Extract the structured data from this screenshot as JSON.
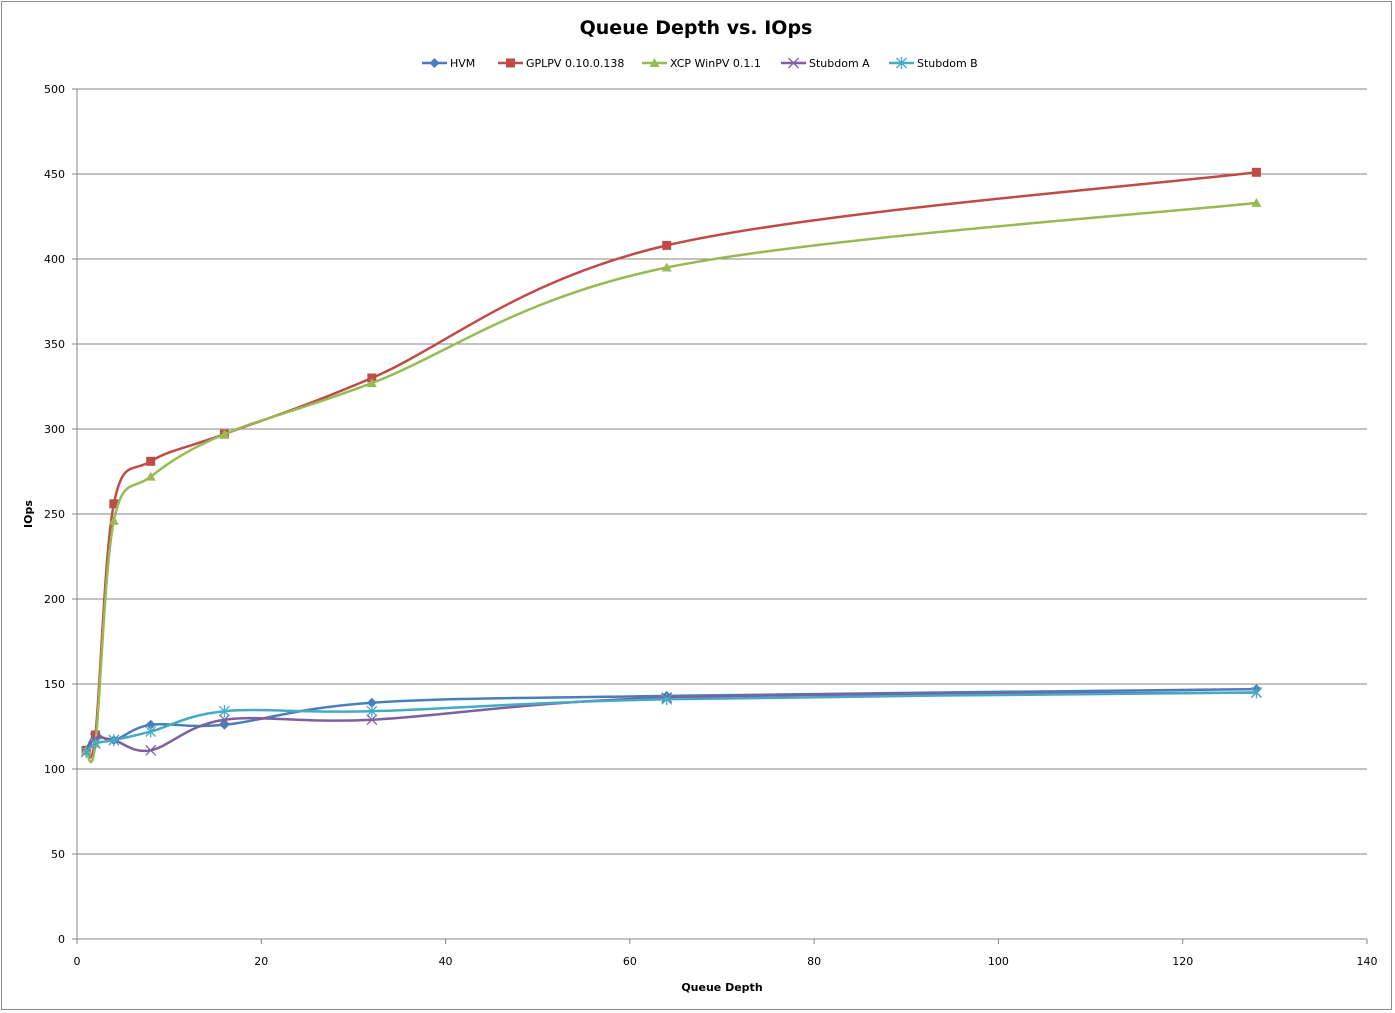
{
  "chart_data": {
    "type": "line",
    "title": "Queue Depth vs. IOps",
    "xlabel": "Queue Depth",
    "ylabel": "IOps",
    "xlim": [
      0,
      140
    ],
    "ylim": [
      0,
      500
    ],
    "xticks": [
      0,
      20,
      40,
      60,
      80,
      100,
      120,
      140
    ],
    "yticks": [
      0,
      50,
      100,
      150,
      200,
      250,
      300,
      350,
      400,
      450,
      500
    ],
    "grid": "horizontal",
    "legend": "top",
    "smoothed": true,
    "x": [
      1,
      2,
      4,
      8,
      16,
      32,
      64,
      128
    ],
    "series": [
      {
        "name": "HVM",
        "color": "#4a7ebb",
        "marker": "diamond",
        "values": [
          111,
          120,
          117,
          126,
          126,
          139,
          143,
          147
        ]
      },
      {
        "name": "GPLPV 0.10.0.138",
        "color": "#be4b48",
        "marker": "square",
        "values": [
          111,
          120,
          256,
          281,
          297,
          330,
          408,
          451
        ]
      },
      {
        "name": "XCP WinPV 0.1.1",
        "color": "#98b954",
        "marker": "triangle",
        "values": [
          111,
          115,
          246,
          272,
          297,
          327,
          395,
          433
        ]
      },
      {
        "name": "Stubdom A",
        "color": "#7d60a0",
        "marker": "x",
        "values": [
          110,
          118,
          117,
          111,
          129,
          129,
          142,
          145
        ]
      },
      {
        "name": "Stubdom B",
        "color": "#46aac5",
        "marker": "star",
        "values": [
          110,
          115,
          117,
          122,
          134,
          134,
          141,
          145
        ]
      }
    ]
  }
}
